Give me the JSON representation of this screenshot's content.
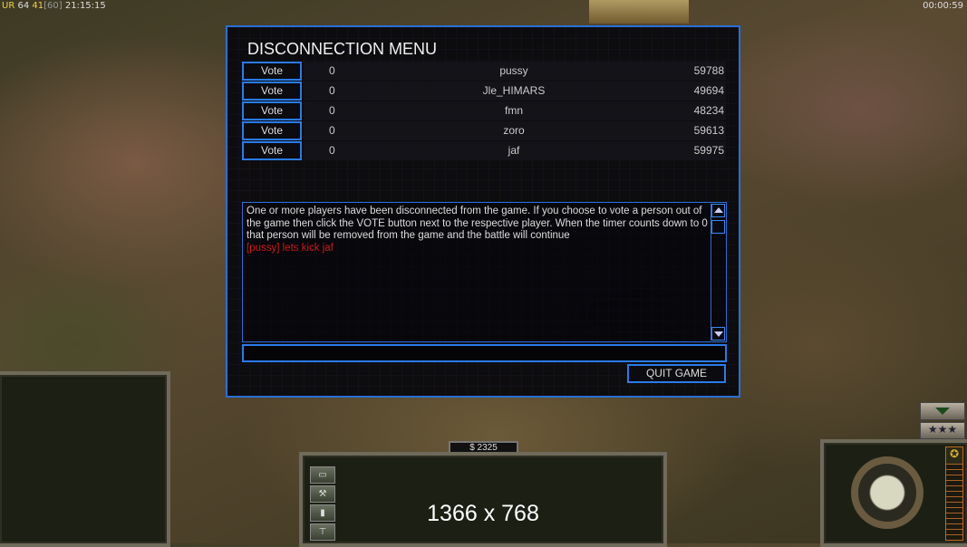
{
  "hud": {
    "mode": "UR",
    "fps": "64",
    "fps2": "41",
    "fps_cap": "[60]",
    "clock": "21:15:15",
    "game_timer": "00:00:59"
  },
  "dialog": {
    "title": "DISCONNECTION MENU",
    "players": [
      {
        "vote_label": "Vote",
        "votes": "0",
        "name": "pussy",
        "ping": "59788"
      },
      {
        "vote_label": "Vote",
        "votes": "0",
        "name": "Jle_HIMARS",
        "ping": "49694"
      },
      {
        "vote_label": "Vote",
        "votes": "0",
        "name": "fmn",
        "ping": "48234"
      },
      {
        "vote_label": "Vote",
        "votes": "0",
        "name": "zoro",
        "ping": "59613"
      },
      {
        "vote_label": "Vote",
        "votes": "0",
        "name": "jaf",
        "ping": "59975"
      }
    ],
    "message": "One or more players have been disconnected from the game. If you choose to vote a person out of the game then click the VOTE button next to the respective player. When the timer counts down to 0 that person will be removed from the game and the battle will continue",
    "chat": "[pussy] lets kick jaf",
    "chat_color": "#d01818",
    "input_value": "",
    "quit_label": "QUIT GAME"
  },
  "bottom": {
    "money": "$ 2325",
    "resolution_overlay": "1366 x 768"
  },
  "colors": {
    "accent": "#2a7bea"
  }
}
